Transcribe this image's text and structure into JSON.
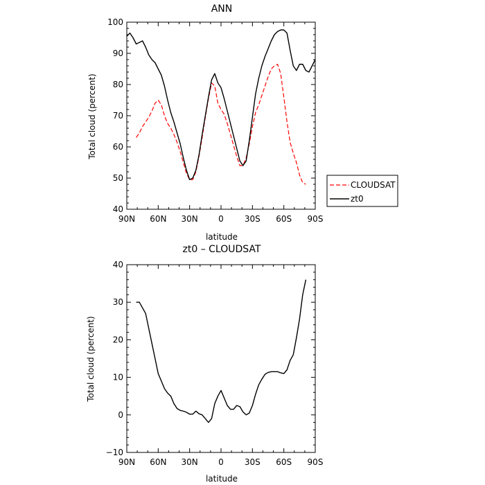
{
  "chart_data": [
    {
      "type": "line",
      "title": "ANN",
      "xlabel": "latitude",
      "ylabel": "Total cloud (percent)",
      "xlim": [
        90,
        -90
      ],
      "ylim": [
        40,
        100
      ],
      "x_tick_values": [
        90,
        60,
        30,
        0,
        -30,
        -60,
        -90
      ],
      "x_tick_labels": [
        "90N",
        "60N",
        "30N",
        "0",
        "30S",
        "60S",
        "90S"
      ],
      "y_tick_values": [
        40,
        50,
        60,
        70,
        80,
        90,
        100
      ],
      "y_tick_labels": [
        "40",
        "50",
        "60",
        "70",
        "80",
        "90",
        "100"
      ],
      "legend_position": "right",
      "series": [
        {
          "name": "CLOUDSAT",
          "color": "#ff0000",
          "dash": "dashed",
          "x": [
            81,
            78,
            75,
            72,
            69,
            66,
            63,
            60,
            57,
            54,
            51,
            48,
            45,
            42,
            39,
            36,
            33,
            30,
            27,
            24,
            21,
            18,
            15,
            12,
            9,
            6,
            3,
            0,
            -3,
            -6,
            -9,
            -12,
            -15,
            -18,
            -21,
            -24,
            -27,
            -30,
            -33,
            -36,
            -39,
            -42,
            -45,
            -48,
            -51,
            -54,
            -57,
            -60,
            -63,
            -66,
            -69,
            -72,
            -75,
            -78,
            -81
          ],
          "y": [
            63,
            64.5,
            66.5,
            68,
            69.5,
            71.5,
            74,
            75,
            73.5,
            70,
            67.5,
            66,
            64,
            61.5,
            58.5,
            55,
            51.5,
            49.5,
            49.5,
            52,
            57,
            63,
            69.5,
            75.5,
            80.5,
            79.5,
            74,
            72,
            70.5,
            67.5,
            64,
            60.5,
            57,
            54,
            54,
            56.5,
            61,
            66.5,
            71,
            73.5,
            76.5,
            79.5,
            82.5,
            85,
            86,
            86.5,
            83.5,
            76,
            68,
            61.5,
            58,
            55,
            51,
            48.5,
            48
          ]
        },
        {
          "name": "zt0",
          "color": "#000000",
          "dash": "solid",
          "x": [
            90,
            87,
            84,
            81,
            78,
            75,
            72,
            69,
            66,
            63,
            60,
            57,
            54,
            51,
            48,
            45,
            42,
            39,
            36,
            33,
            30,
            27,
            24,
            21,
            18,
            15,
            12,
            9,
            6,
            3,
            0,
            -3,
            -6,
            -9,
            -12,
            -15,
            -18,
            -21,
            -24,
            -27,
            -30,
            -33,
            -36,
            -39,
            -42,
            -45,
            -48,
            -51,
            -54,
            -57,
            -60,
            -63,
            -66,
            -69,
            -72,
            -75,
            -78,
            -81,
            -84,
            -87,
            -90
          ],
          "y": [
            95.5,
            96.5,
            95,
            93,
            93.5,
            94,
            92,
            89.5,
            88,
            87,
            85,
            83,
            79.5,
            75,
            71,
            68,
            64.5,
            61,
            56.5,
            52.5,
            49.5,
            50,
            52.5,
            57.5,
            64,
            70,
            76,
            81.5,
            83.5,
            80.5,
            79,
            75.5,
            71.5,
            67.5,
            63.5,
            59.5,
            55.5,
            54,
            55.5,
            62,
            69.5,
            77,
            82,
            86,
            89,
            91.5,
            94,
            96,
            97,
            97.5,
            97.5,
            96.5,
            91,
            86,
            84.5,
            86.5,
            86.5,
            84.5,
            84,
            86,
            88
          ]
        }
      ]
    },
    {
      "type": "line",
      "title": "zt0 – CLOUDSAT",
      "xlabel": "latitude",
      "ylabel": "Total cloud (percent)",
      "xlim": [
        90,
        -90
      ],
      "ylim": [
        -10,
        40
      ],
      "x_tick_values": [
        90,
        60,
        30,
        0,
        -30,
        -60,
        -90
      ],
      "x_tick_labels": [
        "90N",
        "60N",
        "30N",
        "0",
        "30S",
        "60S",
        "90S"
      ],
      "y_tick_values": [
        -10,
        0,
        10,
        20,
        30,
        40
      ],
      "y_tick_labels": [
        "−10",
        "0",
        "10",
        "20",
        "30",
        "40"
      ],
      "series": [
        {
          "color": "#000000",
          "dash": "solid",
          "x": [
            81,
            78,
            75,
            72,
            69,
            66,
            63,
            60,
            57,
            54,
            51,
            48,
            45,
            42,
            39,
            36,
            33,
            30,
            27,
            24,
            21,
            18,
            15,
            12,
            9,
            6,
            3,
            0,
            -3,
            -6,
            -9,
            -12,
            -15,
            -18,
            -21,
            -24,
            -27,
            -30,
            -33,
            -36,
            -39,
            -42,
            -45,
            -48,
            -51,
            -54,
            -57,
            -60,
            -63,
            -66,
            -69,
            -72,
            -75,
            -78,
            -81
          ],
          "y": [
            30,
            30,
            28.5,
            27,
            23,
            19,
            15,
            11,
            9,
            7,
            5.8,
            5,
            3,
            1.7,
            1.2,
            1,
            0.7,
            0.2,
            0.2,
            1,
            0.3,
            0,
            -1,
            -2,
            -1,
            3,
            5,
            6.5,
            4.5,
            2.5,
            1.5,
            1.5,
            2.5,
            2.2,
            0.8,
            0,
            0.5,
            2.5,
            5.5,
            8,
            9.5,
            10.8,
            11.3,
            11.5,
            11.5,
            11.5,
            11.2,
            11,
            12,
            14.5,
            16,
            20.5,
            25.5,
            32,
            36
          ]
        }
      ]
    }
  ]
}
